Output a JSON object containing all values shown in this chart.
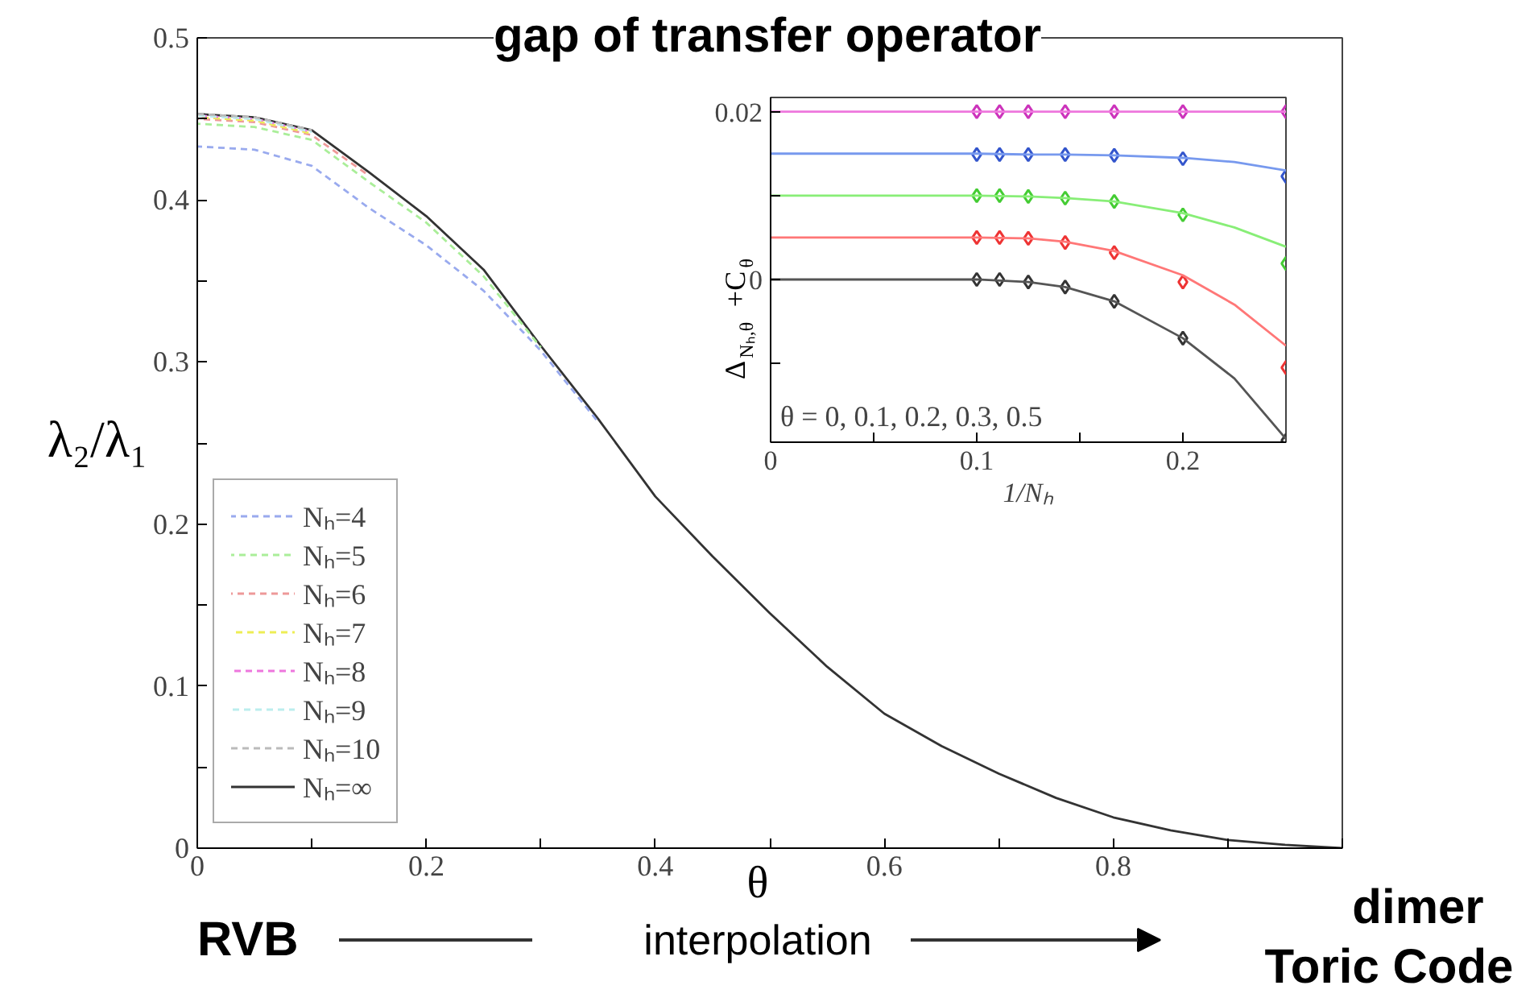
{
  "chart_data": [
    {
      "type": "line",
      "title": "gap of transfer operator",
      "xlabel": "θ",
      "ylabel": "λ₂/λ₁",
      "x": [
        0,
        0.05,
        0.1,
        0.15,
        0.2,
        0.25,
        0.3,
        0.35,
        0.4,
        0.45,
        0.5,
        0.55,
        0.6,
        0.65,
        0.7,
        0.75,
        0.8,
        0.85,
        0.9,
        0.95,
        1.0
      ],
      "series": [
        {
          "name": "Nₕ=∞",
          "color": "#333333",
          "line_style": "solid",
          "values": [
            0.453,
            0.451,
            0.443,
            0.417,
            0.39,
            0.357,
            0.31,
            0.265,
            0.217,
            0.18,
            0.145,
            0.112,
            0.083,
            0.063,
            0.046,
            0.031,
            0.019,
            0.011,
            0.005,
            0.002,
            0
          ]
        },
        {
          "name": "Nₕ=4",
          "color": "#99aaee",
          "line_style": "dashed",
          "values": [
            0.433,
            0.431,
            0.421,
            0.395,
            0.372,
            0.344,
            0.307,
            0.263,
            null,
            null,
            null,
            null,
            null,
            null,
            null,
            null,
            null,
            null,
            null,
            null,
            null
          ]
        },
        {
          "name": "Nₕ=5",
          "color": "#aaee99",
          "line_style": "dashed",
          "values": [
            0.447,
            0.445,
            0.437,
            0.411,
            0.386,
            0.353,
            0.309,
            null,
            null,
            null,
            null,
            null,
            null,
            null,
            null,
            null,
            null,
            null,
            null,
            null,
            null
          ]
        },
        {
          "name": "Nₕ=6",
          "color": "#ee9999",
          "line_style": "dashed",
          "values": [
            0.45,
            0.448,
            0.44,
            0.415,
            null,
            null,
            null,
            null,
            null,
            null,
            null,
            null,
            null,
            null,
            null,
            null,
            null,
            null,
            null,
            null,
            null
          ]
        },
        {
          "name": "Nₕ=7",
          "color": "#eeee55",
          "line_style": "dashed",
          "values": [
            0.451,
            0.449,
            0.441,
            null,
            null,
            null,
            null,
            null,
            null,
            null,
            null,
            null,
            null,
            null,
            null,
            null,
            null,
            null,
            null,
            null,
            null
          ]
        },
        {
          "name": "Nₕ=8",
          "color": "#ee77dd",
          "line_style": "dashed",
          "values": [
            0.452,
            0.45,
            0.442,
            null,
            null,
            null,
            null,
            null,
            null,
            null,
            null,
            null,
            null,
            null,
            null,
            null,
            null,
            null,
            null,
            null,
            null
          ]
        },
        {
          "name": "Nₕ=9",
          "color": "#bbeeee",
          "line_style": "dashed",
          "values": [
            0.452,
            0.45,
            0.442,
            null,
            null,
            null,
            null,
            null,
            null,
            null,
            null,
            null,
            null,
            null,
            null,
            null,
            null,
            null,
            null,
            null,
            null
          ]
        },
        {
          "name": "Nₕ=10",
          "color": "#bbbbbb",
          "line_style": "dashed",
          "values": [
            0.453,
            0.451,
            0.443,
            null,
            null,
            null,
            null,
            null,
            null,
            null,
            null,
            null,
            null,
            null,
            null,
            null,
            null,
            null,
            null,
            null,
            null
          ]
        }
      ],
      "xlim": [
        0,
        1
      ],
      "ylim": [
        0,
        0.5
      ],
      "xticks": [
        0,
        {
          "value": 0.1,
          "label": null
        },
        0.2,
        {
          "value": 0.3,
          "label": null
        },
        0.4,
        {
          "value": 0.5,
          "label": null
        },
        0.6,
        {
          "value": 0.7,
          "label": null
        },
        0.8,
        {
          "value": 0.9,
          "label": null
        },
        {
          "value": 1,
          "label": null
        }
      ],
      "yticks": [
        0,
        {
          "value": 0.05,
          "label": null
        },
        0.1,
        {
          "value": 0.15,
          "label": null
        },
        0.2,
        {
          "value": 0.25,
          "label": null
        },
        0.3,
        {
          "value": 0.35,
          "label": null
        },
        0.4,
        {
          "value": 0.45,
          "label": null
        },
        0.5
      ],
      "legend": "left",
      "grid": false,
      "annotations": [
        "RVB",
        "interpolation",
        "dimer",
        "Toric Code"
      ]
    },
    {
      "type": "line",
      "xlabel": "1/Nₕ",
      "ylabel": "Δ$_{Nₕ,θ}$+C$_{θ}$",
      "series": [
        {
          "type": "scatter",
          "marker": "diamond",
          "color": "#333333",
          "x": [
            0.1,
            0.1111,
            0.125,
            0.1429,
            0.1667,
            0.2,
            0.25
          ],
          "values": [
            0,
            0,
            -0.0003,
            -0.0009,
            -0.0026,
            -0.007,
            -0.0192
          ]
        },
        {
          "type": "scatter",
          "marker": "diamond",
          "color": "#ee3333",
          "x": [
            0.1,
            0.1111,
            0.125,
            0.1429,
            0.1667,
            0.2,
            0.25
          ],
          "values": [
            0.005,
            0.005,
            0.0049,
            0.0044,
            0.0032,
            -0.0003,
            -0.0105
          ]
        },
        {
          "type": "scatter",
          "marker": "diamond",
          "color": "#44cc33",
          "x": [
            0.1,
            0.1111,
            0.125,
            0.1429,
            0.1667,
            0.2,
            0.25
          ],
          "values": [
            0.01,
            0.01,
            0.0099,
            0.0097,
            0.0093,
            0.0077,
            0.0019
          ]
        },
        {
          "type": "scatter",
          "marker": "diamond",
          "color": "#3355cc",
          "x": [
            0.1,
            0.1111,
            0.125,
            0.1429,
            0.1667,
            0.2,
            0.25
          ],
          "values": [
            0.0149,
            0.0149,
            0.0149,
            0.0149,
            0.0148,
            0.0144,
            0.0123
          ]
        },
        {
          "type": "scatter",
          "marker": "diamond",
          "color": "#cc33bb",
          "x": [
            0.1,
            0.1111,
            0.125,
            0.1429,
            0.1667,
            0.2,
            0.25
          ],
          "values": [
            0.02,
            0.02,
            0.02,
            0.02,
            0.02,
            0.02,
            0.02
          ]
        },
        {
          "type": "line",
          "color": "#555555",
          "x": [
            0,
            0.1,
            0.125,
            0.1429,
            0.1667,
            0.2,
            0.225,
            0.25
          ],
          "values": [
            0,
            0,
            -0.0003,
            -0.0009,
            -0.0026,
            -0.007,
            -0.0118,
            -0.019
          ]
        },
        {
          "type": "line",
          "color": "#ff7777",
          "x": [
            0,
            0.1,
            0.125,
            0.1429,
            0.1667,
            0.2,
            0.225,
            0.25
          ],
          "values": [
            0.005,
            0.005,
            0.0049,
            0.0045,
            0.0034,
            0.0005,
            -0.003,
            -0.0079
          ]
        },
        {
          "type": "line",
          "color": "#88ee77",
          "x": [
            0,
            0.1,
            0.125,
            0.1429,
            0.1667,
            0.2,
            0.225,
            0.25
          ],
          "values": [
            0.01,
            0.01,
            0.0099,
            0.0097,
            0.0093,
            0.0079,
            0.0062,
            0.0039
          ]
        },
        {
          "type": "line",
          "color": "#7799ee",
          "x": [
            0,
            0.1,
            0.125,
            0.1429,
            0.1667,
            0.2,
            0.225,
            0.25
          ],
          "values": [
            0.015,
            0.015,
            0.0149,
            0.0149,
            0.0148,
            0.0145,
            0.014,
            0.013
          ]
        },
        {
          "type": "line",
          "color": "#ee77dd",
          "x": [
            0,
            0.1,
            0.125,
            0.1429,
            0.1667,
            0.2,
            0.225,
            0.25
          ],
          "values": [
            0.02,
            0.02,
            0.02,
            0.02,
            0.02,
            0.02,
            0.02,
            0.02
          ]
        }
      ],
      "xlim": [
        0,
        0.25
      ],
      "ylim": [
        -0.0194,
        0.0217
      ],
      "xticks": [
        0,
        {
          "value": 0.05,
          "label": null
        },
        0.1,
        {
          "value": 0.15,
          "label": null
        },
        0.2
      ],
      "yticks": [
        {
          "value": -0.01,
          "label": null
        },
        0,
        {
          "value": 0.01,
          "label": null
        },
        0.02
      ],
      "grid": false,
      "annotations": [
        "θ = 0, 0.1, 0.2, 0.3, 0.5"
      ]
    }
  ]
}
